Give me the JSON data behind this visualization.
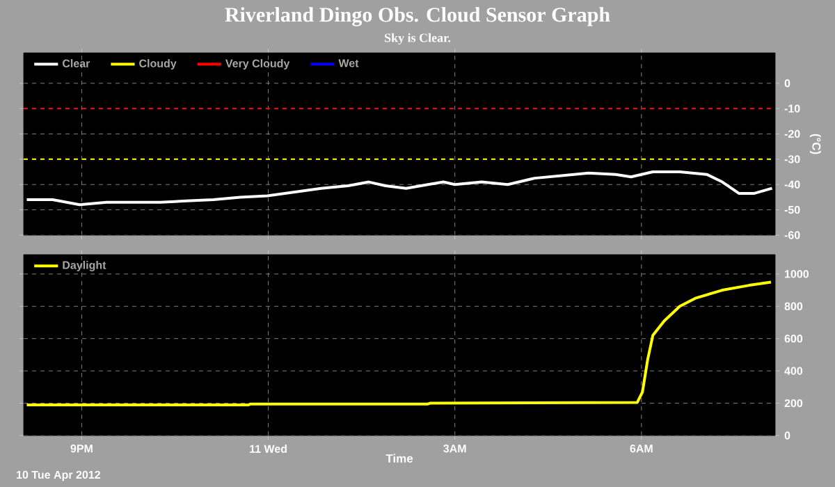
{
  "chart_data": [
    {
      "type": "line",
      "title": "Riverland Dingo Obs. Cloud Sensor Graph",
      "subtitle": "Sky is Clear.",
      "ylabel": "(°C)",
      "xlim": [
        "2012-04-10T20:04",
        "2012-04-11T08:09"
      ],
      "xticks": [
        {
          "value": "2012-04-10T21:00",
          "label": null
        },
        {
          "value": "2012-04-11T00:00",
          "label": null
        },
        {
          "value": "2012-04-11T03:00",
          "label": null
        },
        {
          "value": "2012-04-11T06:00",
          "label": null
        }
      ],
      "ylim": [
        -60,
        12
      ],
      "yticks": [
        0,
        -10,
        -20,
        -30,
        -40,
        -50,
        -60
      ],
      "tick_labels": "y",
      "grid": true,
      "legend": "top left",
      "ref_lines": [
        {
          "axis": "y",
          "value": -10,
          "color": "#ff0000",
          "line_style": "dashed"
        },
        {
          "axis": "y",
          "value": -30,
          "color": "#ffff00",
          "line_style": "dashed"
        }
      ],
      "series": [
        {
          "name": "Clear",
          "color": "#ffffff",
          "x": [
            "2012-04-10T20:07",
            "2012-04-10T20:32",
            "2012-04-10T20:58",
            "2012-04-10T21:24",
            "2012-04-10T21:50",
            "2012-04-10T22:16",
            "2012-04-10T22:41",
            "2012-04-10T23:07",
            "2012-04-10T23:33",
            "2012-04-10T23:59",
            "2012-04-11T00:25",
            "2012-04-11T00:51",
            "2012-04-11T01:17",
            "2012-04-11T01:37",
            "2012-04-11T01:53",
            "2012-04-11T02:13",
            "2012-04-11T02:34",
            "2012-04-11T02:49",
            "2012-04-11T03:00",
            "2012-04-11T03:26",
            "2012-04-11T03:51",
            "2012-04-11T04:17",
            "2012-04-11T04:43",
            "2012-04-11T05:09",
            "2012-04-11T05:35",
            "2012-04-11T05:50",
            "2012-04-11T06:11",
            "2012-04-11T06:37",
            "2012-04-11T07:03",
            "2012-04-11T07:18",
            "2012-04-11T07:34",
            "2012-04-11T07:49",
            "2012-04-11T08:06"
          ],
          "values": [
            -46,
            -46,
            -48,
            -47,
            -47,
            -47,
            -46.5,
            -46,
            -45,
            -44.5,
            -43,
            -41.5,
            -40.5,
            -39,
            -40.5,
            -41.5,
            -40,
            -39,
            -40,
            -39,
            -40,
            -37.5,
            -36.5,
            -35.5,
            -36,
            -37,
            -35,
            -35,
            -36,
            -39,
            -43.5,
            -43.5,
            -41.5
          ]
        },
        {
          "name": "Cloudy",
          "color": "#ffff00"
        },
        {
          "name": "Very Cloudy",
          "color": "#ff0000"
        },
        {
          "name": "Wet",
          "color": "#0000ff"
        }
      ]
    },
    {
      "type": "line",
      "xlabel": "Time",
      "annotations": [
        "10 Tue Apr 2012"
      ],
      "xlim": [
        "2012-04-10T20:04",
        "2012-04-11T08:09"
      ],
      "xticks": [
        {
          "value": "2012-04-10T21:00",
          "label": "9PM"
        },
        {
          "value": "2012-04-11T00:00",
          "label": "11 Wed"
        },
        {
          "value": "2012-04-11T03:00",
          "label": "3AM"
        },
        {
          "value": "2012-04-11T06:00",
          "label": "6AM"
        }
      ],
      "ylim": [
        0,
        1120
      ],
      "yticks": [
        0,
        200,
        400,
        600,
        800,
        1000
      ],
      "grid": true,
      "legend": "top left",
      "series": [
        {
          "name": "Daylight",
          "color": "#ffff00",
          "x": [
            "2012-04-10T20:07",
            "2012-04-10T23:41",
            "2012-04-10T23:43",
            "2012-04-11T02:34",
            "2012-04-11T02:36",
            "2012-04-11T05:56",
            "2012-04-11T06:01",
            "2012-04-11T06:06",
            "2012-04-11T06:11",
            "2012-04-11T06:22",
            "2012-04-11T06:37",
            "2012-04-11T06:52",
            "2012-04-11T07:18",
            "2012-04-11T07:44",
            "2012-04-11T08:05"
          ],
          "values": [
            190,
            190,
            195,
            195,
            200,
            205,
            270,
            470,
            620,
            710,
            800,
            850,
            900,
            930,
            950
          ]
        }
      ]
    }
  ]
}
